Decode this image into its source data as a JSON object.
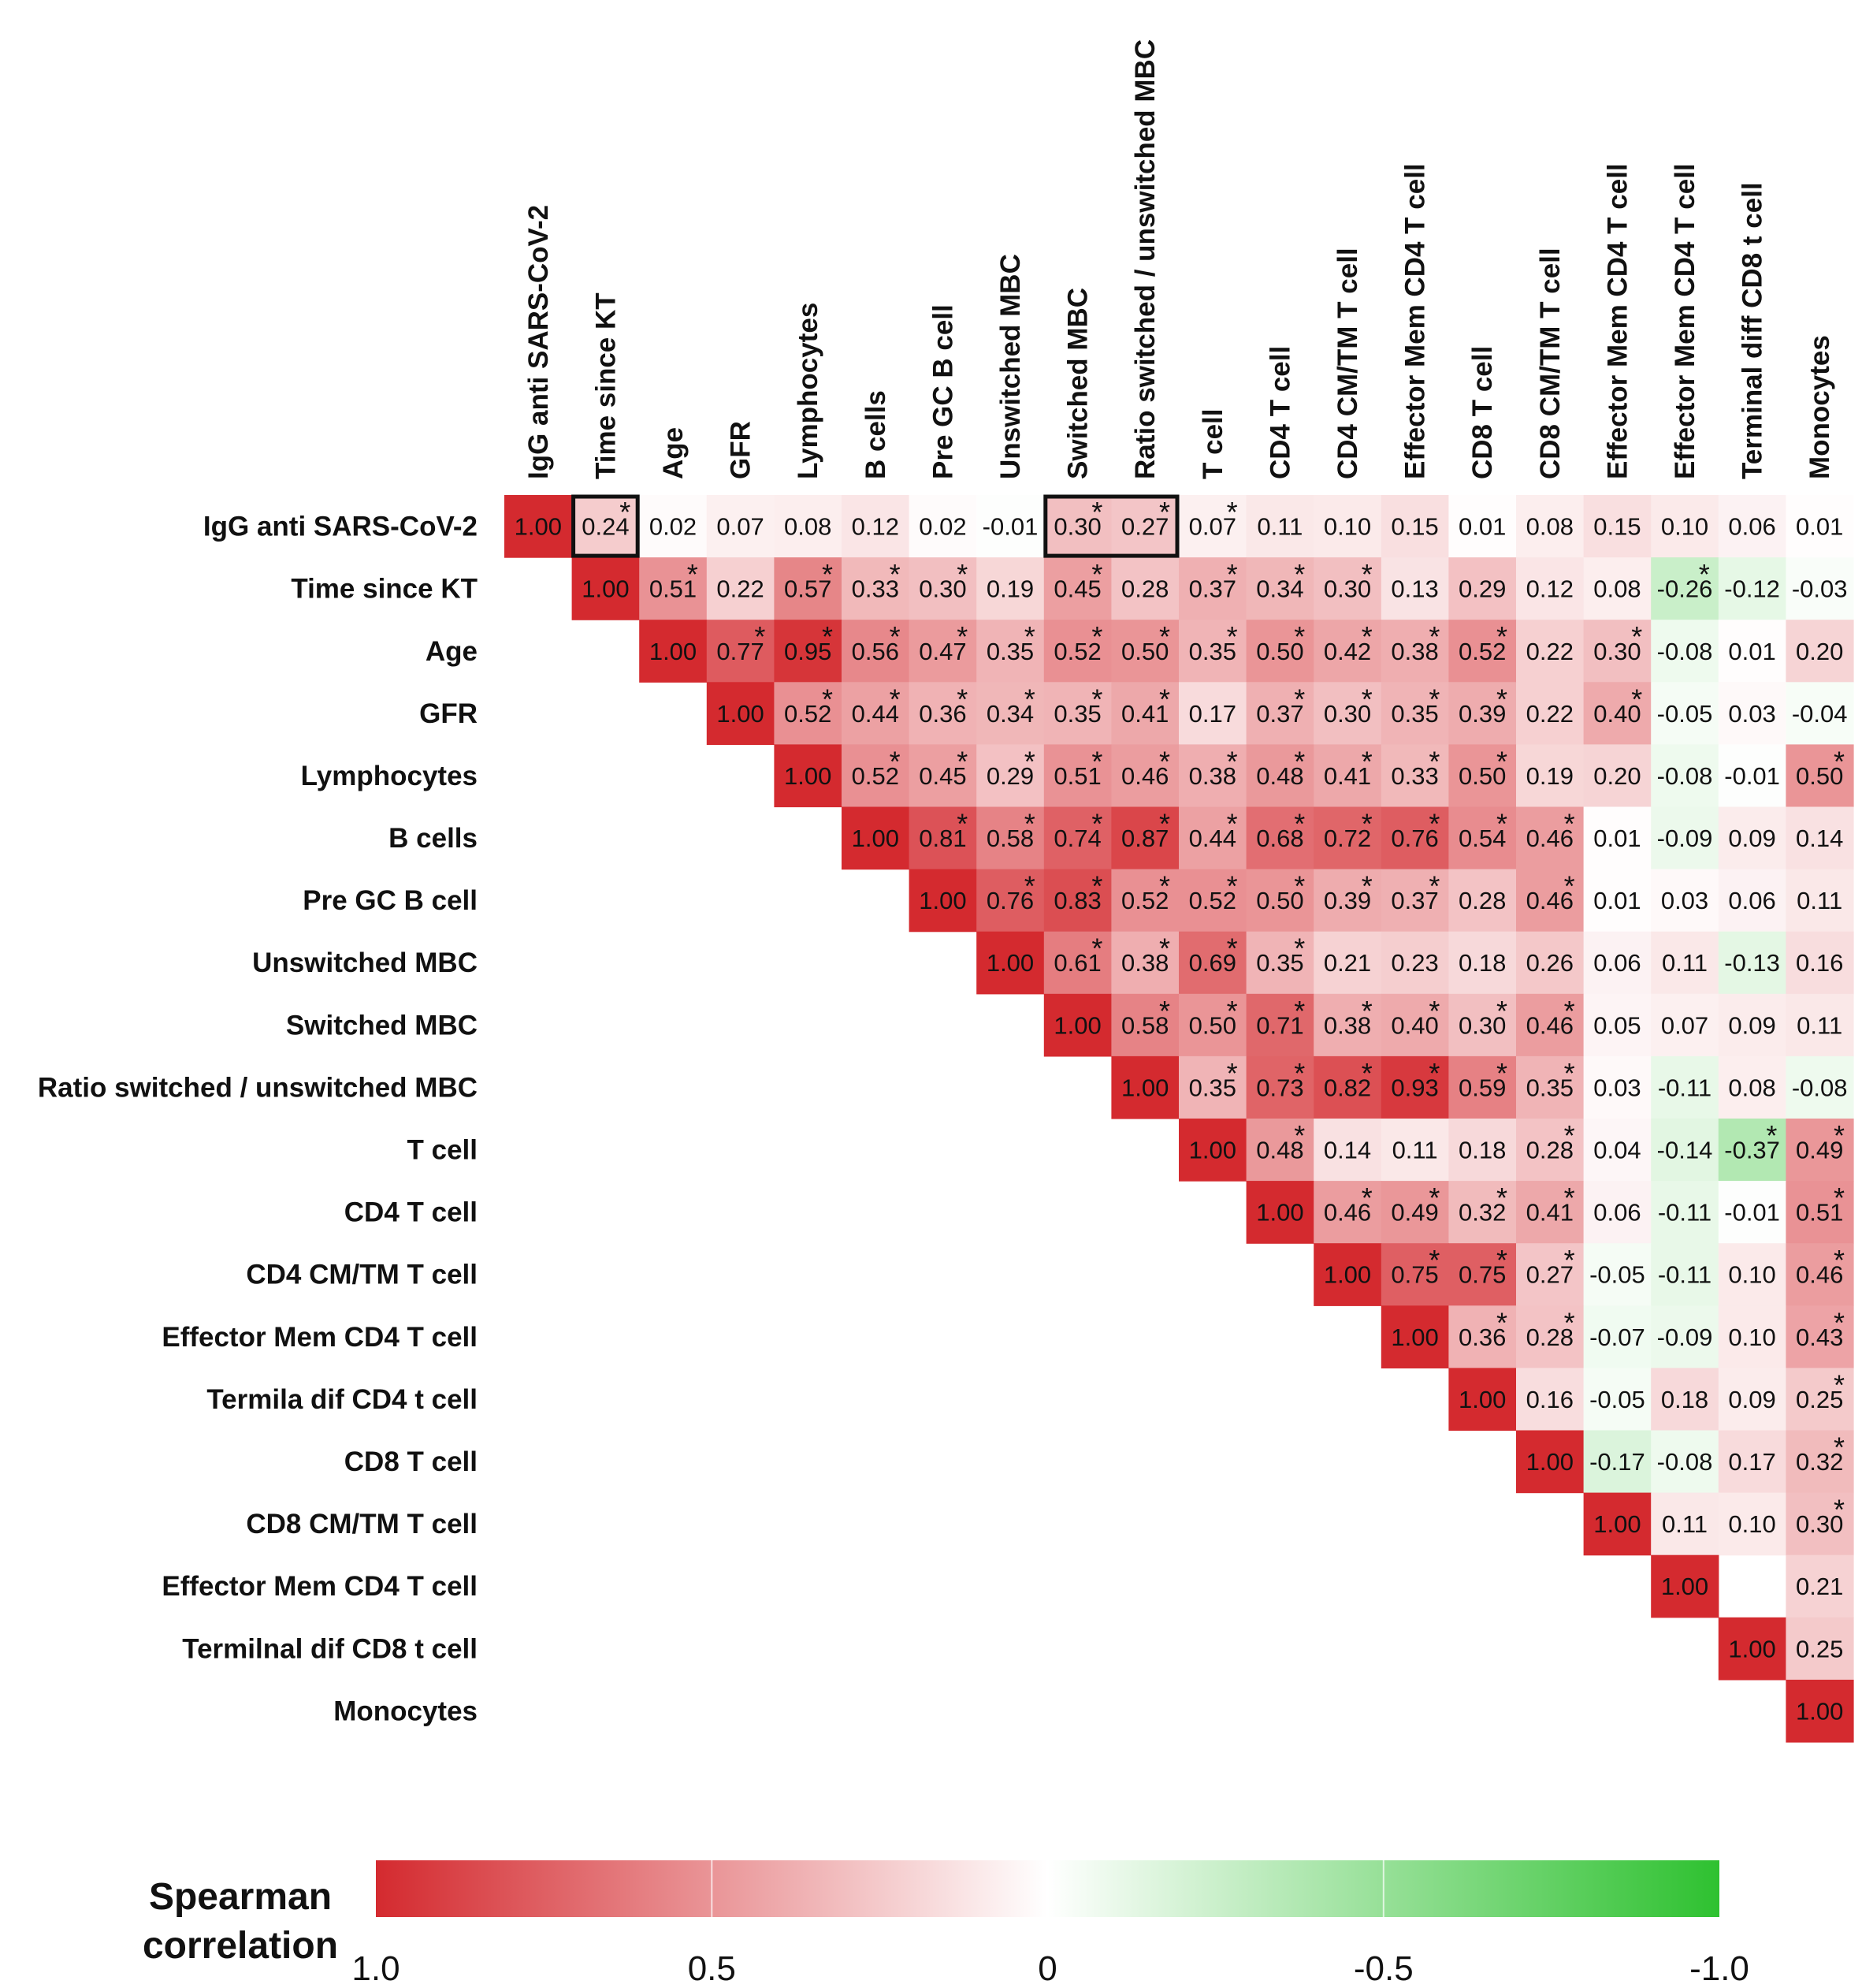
{
  "chart_data": {
    "type": "heatmap",
    "title": "",
    "row_labels": [
      "IgG anti SARS-CoV-2",
      "Time since KT",
      "Age",
      "GFR",
      "Lymphocytes",
      "B cells",
      "Pre GC B cell",
      "Unswitched MBC",
      "Switched MBC",
      "Ratio switched / unswitched MBC",
      "T cell",
      "CD4 T cell",
      "CD4 CM/TM T cell",
      "Effector Mem CD4 T cell",
      "Termila dif CD4 t cell",
      "CD8 T cell",
      "CD8 CM/TM T cell",
      "Effector Mem CD4 T cell",
      "Termilnal dif CD8 t cell",
      "Monocytes"
    ],
    "col_labels": [
      "IgG anti SARS-CoV-2",
      "Time since KT",
      "Age",
      "GFR",
      "Lymphocytes",
      "B cells",
      "Pre GC B cell",
      "Unswitched MBC",
      "Switched MBC",
      "Ratio switched / unswitched MBC",
      "T cell",
      "CD4 T cell",
      "CD4 CM/TM T cell",
      "Effector Mem CD4 T cell",
      "CD8 T cell",
      "CD8 CM/TM T cell",
      "Effector Mem CD4 T cell",
      "Effector Mem CD4 T cell",
      "Terminal diff CD8 t cell",
      "Monocytes"
    ],
    "values": [
      [
        "1.00",
        "0.24",
        "0.02",
        "0.07",
        "0.08",
        "0.12",
        "0.02",
        "-0.01",
        "0.30",
        "0.27",
        "0.07",
        "0.11",
        "0.10",
        "0.15",
        "0.01",
        "0.08",
        "0.15",
        "0.10",
        "0.06",
        "0.01"
      ],
      [
        "",
        "1.00",
        "0.51",
        "0.22",
        "0.57",
        "0.33",
        "0.30",
        "0.19",
        "0.45",
        "0.28",
        "0.37",
        "0.34",
        "0.30",
        "0.13",
        "0.29",
        "0.12",
        "0.08",
        "-0.26",
        "-0.12",
        "-0.03"
      ],
      [
        "",
        "",
        "1.00",
        "0.77",
        "0.95",
        "0.56",
        "0.47",
        "0.35",
        "0.52",
        "0.50",
        "0.35",
        "0.50",
        "0.42",
        "0.38",
        "0.52",
        "0.22",
        "0.30",
        "-0.08",
        "0.01",
        "0.20"
      ],
      [
        "",
        "",
        "",
        "1.00",
        "0.52",
        "0.44",
        "0.36",
        "0.34",
        "0.35",
        "0.41",
        "0.17",
        "0.37",
        "0.30",
        "0.35",
        "0.39",
        "0.22",
        "0.40",
        "-0.05",
        "0.03",
        "-0.04"
      ],
      [
        "",
        "",
        "",
        "",
        "1.00",
        "0.52",
        "0.45",
        "0.29",
        "0.51",
        "0.46",
        "0.38",
        "0.48",
        "0.41",
        "0.33",
        "0.50",
        "0.19",
        "0.20",
        "-0.08",
        "-0.01",
        "0.50"
      ],
      [
        "",
        "",
        "",
        "",
        "",
        "1.00",
        "0.81",
        "0.58",
        "0.74",
        "0.87",
        "0.44",
        "0.68",
        "0.72",
        "0.76",
        "0.54",
        "0.46",
        "0.01",
        "-0.09",
        "0.09",
        "0.14"
      ],
      [
        "",
        "",
        "",
        "",
        "",
        "",
        "1.00",
        "0.76",
        "0.83",
        "0.52",
        "0.52",
        "0.50",
        "0.39",
        "0.37",
        "0.28",
        "0.46",
        "0.01",
        "0.03",
        "0.06",
        "0.11"
      ],
      [
        "",
        "",
        "",
        "",
        "",
        "",
        "",
        "1.00",
        "0.61",
        "0.38",
        "0.69",
        "0.35",
        "0.21",
        "0.23",
        "0.18",
        "0.26",
        "0.06",
        "0.11",
        "-0.13",
        "0.16"
      ],
      [
        "",
        "",
        "",
        "",
        "",
        "",
        "",
        "",
        "1.00",
        "0.58",
        "0.50",
        "0.71",
        "0.38",
        "0.40",
        "0.30",
        "0.46",
        "0.05",
        "0.07",
        "0.09",
        "0.11"
      ],
      [
        "",
        "",
        "",
        "",
        "",
        "",
        "",
        "",
        "",
        "1.00",
        "0.35",
        "0.73",
        "0.82",
        "0.93",
        "0.59",
        "0.35",
        "0.03",
        "-0.11",
        "0.08",
        "-0.08"
      ],
      [
        "",
        "",
        "",
        "",
        "",
        "",
        "",
        "",
        "",
        "",
        "1.00",
        "0.48",
        "0.14",
        "0.11",
        "0.18",
        "0.28",
        "0.04",
        "-0.14",
        "-0.37",
        "0.49"
      ],
      [
        "",
        "",
        "",
        "",
        "",
        "",
        "",
        "",
        "",
        "",
        "",
        "1.00",
        "0.46",
        "0.49",
        "0.32",
        "0.41",
        "0.06",
        "-0.11",
        "-0.01",
        "0.51"
      ],
      [
        "",
        "",
        "",
        "",
        "",
        "",
        "",
        "",
        "",
        "",
        "",
        "",
        "1.00",
        "0.75",
        "0.75",
        "0.27",
        "-0.05",
        "-0.11",
        "0.10",
        "0.46"
      ],
      [
        "",
        "",
        "",
        "",
        "",
        "",
        "",
        "",
        "",
        "",
        "",
        "",
        "",
        "1.00",
        "0.36",
        "0.28",
        "-0.07",
        "-0.09",
        "0.10",
        "0.43"
      ],
      [
        "",
        "",
        "",
        "",
        "",
        "",
        "",
        "",
        "",
        "",
        "",
        "",
        "",
        "",
        "1.00",
        "0.16",
        "-0.05",
        "0.18",
        "0.09",
        "0.25"
      ],
      [
        "",
        "",
        "",
        "",
        "",
        "",
        "",
        "",
        "",
        "",
        "",
        "",
        "",
        "",
        "",
        "1.00",
        "-0.17",
        "-0.08",
        "0.17",
        "0.32"
      ],
      [
        "",
        "",
        "",
        "",
        "",
        "",
        "",
        "",
        "",
        "",
        "",
        "",
        "",
        "",
        "",
        "",
        "1.00",
        "0.11",
        "0.10",
        "0.30"
      ],
      [
        "",
        "",
        "",
        "",
        "",
        "",
        "",
        "",
        "",
        "",
        "",
        "",
        "",
        "",
        "",
        "",
        "",
        "1.00",
        "",
        "0.21"
      ],
      [
        "",
        "",
        "",
        "",
        "",
        "",
        "",
        "",
        "",
        "",
        "",
        "",
        "",
        "",
        "",
        "",
        "",
        "",
        "1.00",
        "0.25"
      ],
      [
        "",
        "",
        "",
        "",
        "",
        "",
        "",
        "",
        "",
        "",
        "",
        "",
        "",
        "",
        "",
        "",
        "",
        "",
        "",
        "1.00"
      ]
    ],
    "significant": [
      [
        0,
        1
      ],
      [
        0,
        8
      ],
      [
        0,
        9
      ],
      [
        0,
        10
      ],
      [
        1,
        2
      ],
      [
        1,
        4
      ],
      [
        1,
        5
      ],
      [
        1,
        6
      ],
      [
        1,
        8
      ],
      [
        1,
        10
      ],
      [
        1,
        11
      ],
      [
        1,
        12
      ],
      [
        1,
        17
      ],
      [
        2,
        3
      ],
      [
        2,
        4
      ],
      [
        2,
        5
      ],
      [
        2,
        6
      ],
      [
        2,
        7
      ],
      [
        2,
        8
      ],
      [
        2,
        9
      ],
      [
        2,
        10
      ],
      [
        2,
        11
      ],
      [
        2,
        12
      ],
      [
        2,
        13
      ],
      [
        2,
        14
      ],
      [
        2,
        16
      ],
      [
        3,
        4
      ],
      [
        3,
        5
      ],
      [
        3,
        6
      ],
      [
        3,
        7
      ],
      [
        3,
        8
      ],
      [
        3,
        9
      ],
      [
        3,
        11
      ],
      [
        3,
        12
      ],
      [
        3,
        13
      ],
      [
        3,
        14
      ],
      [
        3,
        16
      ],
      [
        4,
        5
      ],
      [
        4,
        6
      ],
      [
        4,
        7
      ],
      [
        4,
        8
      ],
      [
        4,
        9
      ],
      [
        4,
        10
      ],
      [
        4,
        11
      ],
      [
        4,
        12
      ],
      [
        4,
        13
      ],
      [
        4,
        14
      ],
      [
        4,
        19
      ],
      [
        5,
        6
      ],
      [
        5,
        7
      ],
      [
        5,
        8
      ],
      [
        5,
        9
      ],
      [
        5,
        10
      ],
      [
        5,
        11
      ],
      [
        5,
        12
      ],
      [
        5,
        13
      ],
      [
        5,
        14
      ],
      [
        5,
        15
      ],
      [
        6,
        7
      ],
      [
        6,
        8
      ],
      [
        6,
        9
      ],
      [
        6,
        10
      ],
      [
        6,
        11
      ],
      [
        6,
        12
      ],
      [
        6,
        13
      ],
      [
        6,
        15
      ],
      [
        7,
        8
      ],
      [
        7,
        9
      ],
      [
        7,
        10
      ],
      [
        7,
        11
      ],
      [
        8,
        9
      ],
      [
        8,
        10
      ],
      [
        8,
        11
      ],
      [
        8,
        12
      ],
      [
        8,
        13
      ],
      [
        8,
        14
      ],
      [
        8,
        15
      ],
      [
        9,
        10
      ],
      [
        9,
        11
      ],
      [
        9,
        12
      ],
      [
        9,
        13
      ],
      [
        9,
        14
      ],
      [
        9,
        15
      ],
      [
        10,
        11
      ],
      [
        10,
        15
      ],
      [
        10,
        18
      ],
      [
        10,
        19
      ],
      [
        11,
        12
      ],
      [
        11,
        13
      ],
      [
        11,
        14
      ],
      [
        11,
        15
      ],
      [
        11,
        19
      ],
      [
        12,
        13
      ],
      [
        12,
        14
      ],
      [
        12,
        15
      ],
      [
        12,
        19
      ],
      [
        13,
        14
      ],
      [
        13,
        15
      ],
      [
        13,
        19
      ],
      [
        14,
        19
      ],
      [
        15,
        19
      ],
      [
        16,
        19
      ]
    ],
    "highlighted_cells": [
      [
        0,
        1
      ],
      [
        0,
        8
      ],
      [
        0,
        9
      ]
    ],
    "color_scale": {
      "title": "Spearman correlation",
      "range": [
        1.0,
        -1.0
      ],
      "ticks": [
        "1.0",
        "0.5",
        "0",
        "-0.5",
        "-1.0"
      ],
      "positive_color": "#d42a2f",
      "zero_color": "#ffffff",
      "negative_color": "#2ec130"
    }
  }
}
